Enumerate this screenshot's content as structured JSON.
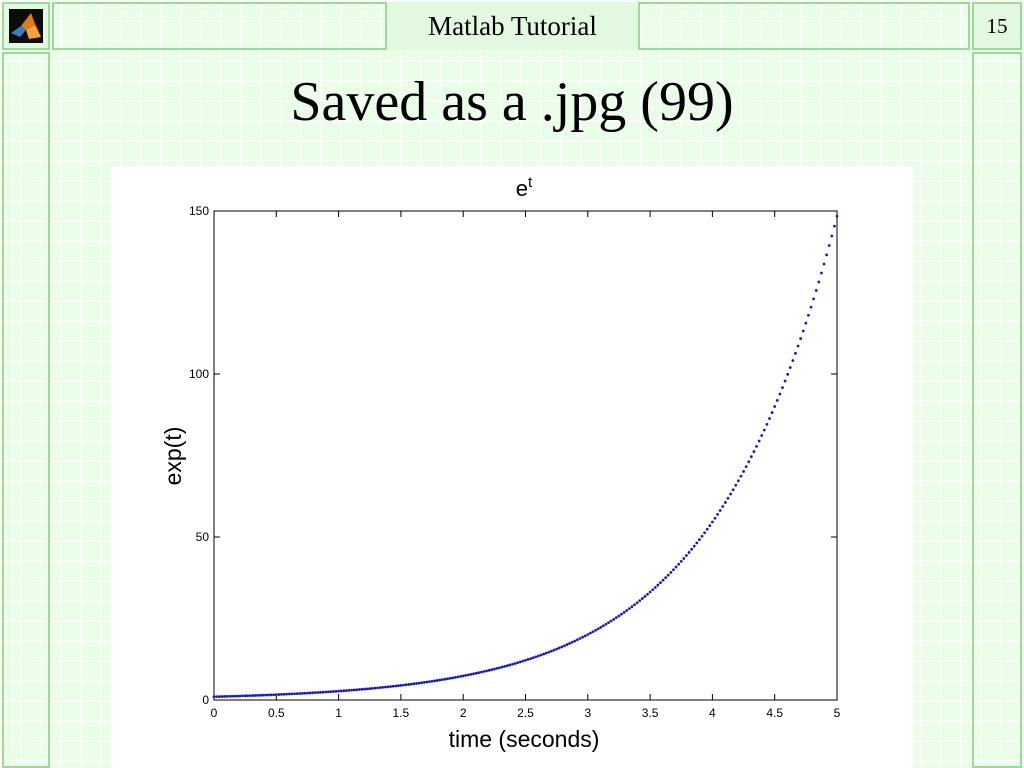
{
  "header": {
    "title": "Matlab Tutorial",
    "page_number": "15"
  },
  "slide": {
    "title": "Saved as a .jpg (99)"
  },
  "colors": {
    "series": "#1a1ab8",
    "background": "#eafde9",
    "grid_line": "#9fd89c"
  },
  "icons": {
    "logo": "matlab-logo-icon"
  },
  "chart_data": {
    "type": "scatter",
    "title": "e",
    "title_superscript": "t",
    "xlabel": "time (seconds)",
    "ylabel": "exp(t)",
    "xlim": [
      0,
      5
    ],
    "ylim": [
      0,
      150
    ],
    "xticks": [
      "0",
      "0.5",
      "1",
      "1.5",
      "2",
      "2.5",
      "3",
      "3.5",
      "4",
      "4.5",
      "5"
    ],
    "yticks": [
      "0",
      "50",
      "100",
      "150"
    ],
    "grid": false,
    "series": [
      {
        "marker": "point",
        "x": [
          0,
          0.25,
          0.5,
          0.75,
          1,
          1.25,
          1.5,
          1.75,
          2,
          2.25,
          2.5,
          2.75,
          3,
          3.25,
          3.5,
          3.75,
          4,
          4.25,
          4.5,
          4.75,
          5
        ],
        "y": [
          1,
          1.28,
          1.65,
          2.12,
          2.72,
          3.49,
          4.48,
          5.75,
          7.39,
          9.49,
          12.18,
          15.64,
          20.09,
          25.79,
          33.12,
          42.52,
          54.6,
          70.11,
          90.02,
          115.58,
          148.41
        ]
      }
    ]
  }
}
